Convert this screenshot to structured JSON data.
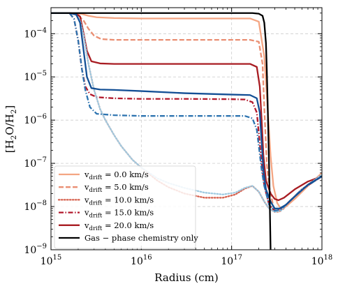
{
  "chart_data": {
    "type": "line",
    "title": "",
    "xlabel": "Radius (cm)",
    "ylabel": "[H2O/H2]",
    "xscale": "log",
    "yscale": "log",
    "xlim": [
      1000000000000000.0,
      1e+18
    ],
    "ylim": [
      1e-09,
      0.0004
    ],
    "grid": true,
    "grid_style": "dashed",
    "legend_position": "lower-left",
    "x_ticks": [
      {
        "value": 1000000000000000.0,
        "base": "10",
        "exp": "15"
      },
      {
        "value": 1e+16,
        "base": "10",
        "exp": "16"
      },
      {
        "value": 1e+17,
        "base": "10",
        "exp": "17"
      },
      {
        "value": 1e+18,
        "base": "10",
        "exp": "18"
      }
    ],
    "y_ticks": [
      {
        "value": 1e-09,
        "base": "10",
        "exp": "−9"
      },
      {
        "value": 1e-08,
        "base": "10",
        "exp": "−8"
      },
      {
        "value": 1e-07,
        "base": "10",
        "exp": "−7"
      },
      {
        "value": 1e-06,
        "base": "10",
        "exp": "−6"
      },
      {
        "value": 1e-05,
        "base": "10",
        "exp": "−5"
      },
      {
        "value": 0.0001,
        "base": "10",
        "exp": "−4"
      }
    ],
    "series": [
      {
        "name": "v_drift = 0.0 km/s",
        "legend_var": "v",
        "legend_sub": "drift",
        "legend_rest": " = 0.0 km/s",
        "color": "#f4a582",
        "dash": "solid",
        "points": [
          [
            1000000000000000.0,
            0.0003
          ],
          [
            1600000000000000.0,
            0.0003
          ],
          [
            2200000000000000.0,
            0.000285
          ],
          [
            2600000000000000.0,
            0.00026
          ],
          [
            3200000000000000.0,
            0.00024
          ],
          [
            5000000000000000.0,
            0.00023
          ],
          [
            1e+16,
            0.000225
          ],
          [
            3e+16,
            0.000225
          ],
          [
            1e+17,
            0.000225
          ],
          [
            1.6e+17,
            0.000225
          ],
          [
            2e+17,
            0.00019
          ],
          [
            2.3e+17,
            3e-05
          ],
          [
            2.5e+17,
            2e-06
          ],
          [
            2.7e+17,
            1.5e-07
          ],
          [
            2.9e+17,
            3e-08
          ],
          [
            3.2e+17,
            1.2e-08
          ],
          [
            3.5e+17,
            9e-09
          ],
          [
            4e+17,
            1e-08
          ],
          [
            5e+17,
            1.5e-08
          ],
          [
            7e+17,
            3e-08
          ],
          [
            1e+18,
            6e-08
          ]
        ]
      },
      {
        "name": "v_drift = 5.0 km/s",
        "legend_var": "v",
        "legend_sub": "drift",
        "legend_rest": " = 5.0 km/s",
        "color": "#ea8f73",
        "dash": "dashed",
        "points": [
          [
            1000000000000000.0,
            0.0003
          ],
          [
            1600000000000000.0,
            0.0003
          ],
          [
            2000000000000000.0,
            0.00027
          ],
          [
            2300000000000000.0,
            0.0002
          ],
          [
            2600000000000000.0,
            0.00013
          ],
          [
            3000000000000000.0,
            9e-05
          ],
          [
            3600000000000000.0,
            7.5e-05
          ],
          [
            5000000000000000.0,
            7.2e-05
          ],
          [
            1e+16,
            7.2e-05
          ],
          [
            3e+16,
            7.2e-05
          ],
          [
            1e+17,
            7.2e-05
          ],
          [
            1.6e+17,
            7.2e-05
          ],
          [
            2e+17,
            6.5e-05
          ],
          [
            2.2e+17,
            2e-05
          ],
          [
            2.3e+17,
            2e-06
          ],
          [
            2.45e+17,
            1e-07
          ],
          [
            2.6e+17,
            3e-08
          ],
          [
            2.9e+17,
            1e-08
          ],
          [
            3.2e+17,
            7.5e-09
          ],
          [
            3.6e+17,
            8e-09
          ],
          [
            4.5e+17,
            1.4e-08
          ],
          [
            6e+17,
            2.5e-08
          ],
          [
            1e+18,
            5.5e-08
          ]
        ]
      },
      {
        "name": "v_drift = 10.0 km/s",
        "legend_var": "v",
        "legend_sub": "drift",
        "legend_rest": " = 10.0 km/s",
        "color": "#d6604d",
        "dash": "dotted",
        "points": [
          [
            1000000000000000.0,
            0.0003
          ],
          [
            1600000000000000.0,
            0.0003
          ],
          [
            1900000000000000.0,
            0.00027
          ],
          [
            2100000000000000.0,
            0.0002
          ],
          [
            2300000000000000.0,
            9e-05
          ],
          [
            2600000000000000.0,
            2e-05
          ],
          [
            3000000000000000.0,
            5e-06
          ],
          [
            3500000000000000.0,
            1.8e-06
          ],
          [
            4000000000000000.0,
            1e-06
          ],
          [
            5000000000000000.0,
            4.5e-07
          ],
          [
            6000000000000000.0,
            2.5e-07
          ],
          [
            8000000000000000.0,
            1.2e-07
          ],
          [
            1e+16,
            8e-08
          ],
          [
            1.5e+16,
            4e-08
          ],
          [
            2e+16,
            2.8e-08
          ],
          [
            3e+16,
            2e-08
          ],
          [
            5e+16,
            1.6e-08
          ],
          [
            8e+16,
            1.6e-08
          ],
          [
            1.1e+17,
            1.9e-08
          ],
          [
            1.4e+17,
            2.6e-08
          ],
          [
            1.7e+17,
            3e-08
          ],
          [
            2e+17,
            2.2e-08
          ],
          [
            2.3e+17,
            1.3e-08
          ],
          [
            2.6e+17,
            9e-09
          ],
          [
            3e+17,
            7.5e-09
          ],
          [
            3.5e+17,
            8e-09
          ],
          [
            4.5e+17,
            1.4e-08
          ],
          [
            6e+17,
            2.5e-08
          ],
          [
            1e+18,
            5.5e-08
          ]
        ]
      },
      {
        "name": "v_drift = 15.0 km/s",
        "legend_var": "v",
        "legend_sub": "drift",
        "legend_rest": " = 15.0 km/s",
        "color": "#b2182b",
        "dash": "dashdot",
        "points": [
          [
            1000000000000000.0,
            0.0003
          ],
          [
            1600000000000000.0,
            0.0003
          ],
          [
            1800000000000000.0,
            0.00022
          ],
          [
            2000000000000000.0,
            7e-05
          ],
          [
            2200000000000000.0,
            1.5e-05
          ],
          [
            2400000000000000.0,
            6e-06
          ],
          [
            2700000000000000.0,
            4e-06
          ],
          [
            3200000000000000.0,
            3.4e-06
          ],
          [
            5000000000000000.0,
            3.2e-06
          ],
          [
            1e+16,
            3.1e-06
          ],
          [
            3e+16,
            3.1e-06
          ],
          [
            1e+17,
            3.05e-06
          ],
          [
            1.4e+17,
            3e-06
          ],
          [
            1.7e+17,
            2.6e-06
          ],
          [
            1.9e+17,
            1.5e-06
          ],
          [
            2e+17,
            5e-07
          ],
          [
            2.15e+17,
            1e-07
          ],
          [
            2.3e+17,
            3e-08
          ],
          [
            2.6e+17,
            1.1e-08
          ],
          [
            3e+17,
            8e-09
          ],
          [
            3.5e+17,
            8.5e-09
          ],
          [
            4.5e+17,
            1.4e-08
          ],
          [
            6e+17,
            2.5e-08
          ],
          [
            1e+18,
            5e-08
          ]
        ]
      },
      {
        "name": "v_drift = 20.0 km/s",
        "legend_var": "v",
        "legend_sub": "drift",
        "legend_rest": " = 20.0 km/s",
        "color": "#a81c22",
        "dash": "solid",
        "points": [
          [
            1000000000000000.0,
            0.0003
          ],
          [
            1600000000000000.0,
            0.0003
          ],
          [
            1900000000000000.0,
            0.00029
          ],
          [
            2100000000000000.0,
            0.00025
          ],
          [
            2300000000000000.0,
            0.0001
          ],
          [
            2500000000000000.0,
            4e-05
          ],
          [
            2800000000000000.0,
            2.3e-05
          ],
          [
            3500000000000000.0,
            2.05e-05
          ],
          [
            5000000000000000.0,
            2e-05
          ],
          [
            1e+16,
            2e-05
          ],
          [
            3e+16,
            2e-05
          ],
          [
            1e+17,
            2e-05
          ],
          [
            1.6e+17,
            2e-05
          ],
          [
            1.9e+17,
            1.7e-05
          ],
          [
            2.05e+17,
            6e-06
          ],
          [
            2.15e+17,
            1e-06
          ],
          [
            2.25e+17,
            1.5e-07
          ],
          [
            2.4e+17,
            4e-08
          ],
          [
            2.7e+17,
            2e-08
          ],
          [
            3e+17,
            1.5e-08
          ],
          [
            3.3e+17,
            1.4e-08
          ],
          [
            3.8e+17,
            1.6e-08
          ],
          [
            5e+17,
            2.5e-08
          ],
          [
            7e+17,
            3.8e-08
          ],
          [
            1e+18,
            5e-08
          ]
        ]
      },
      {
        "name": "v_drift = 10.0 km/s (blue)",
        "in_legend": false,
        "color": "#9ecae1",
        "dash": "dotted",
        "points": [
          [
            1000000000000000.0,
            0.0003
          ],
          [
            1600000000000000.0,
            0.0003
          ],
          [
            1900000000000000.0,
            0.00027
          ],
          [
            2100000000000000.0,
            0.0002
          ],
          [
            2300000000000000.0,
            9e-05
          ],
          [
            2600000000000000.0,
            2e-05
          ],
          [
            3000000000000000.0,
            5e-06
          ],
          [
            3500000000000000.0,
            1.8e-06
          ],
          [
            4000000000000000.0,
            1e-06
          ],
          [
            5000000000000000.0,
            4.5e-07
          ],
          [
            6000000000000000.0,
            2.5e-07
          ],
          [
            8000000000000000.0,
            1.2e-07
          ],
          [
            1e+16,
            8e-08
          ],
          [
            1.5e+16,
            4.5e-08
          ],
          [
            2e+16,
            3.5e-08
          ],
          [
            3e+16,
            2.7e-08
          ],
          [
            5e+16,
            2.1e-08
          ],
          [
            8e+16,
            1.9e-08
          ],
          [
            1.1e+17,
            2.1e-08
          ],
          [
            1.4e+17,
            2.7e-08
          ],
          [
            1.7e+17,
            3e-08
          ],
          [
            2e+17,
            2.2e-08
          ],
          [
            2.3e+17,
            1.3e-08
          ],
          [
            2.6e+17,
            9e-09
          ],
          [
            3e+17,
            7.5e-09
          ],
          [
            3.5e+17,
            8e-09
          ],
          [
            4.5e+17,
            1.4e-08
          ],
          [
            6e+17,
            2.5e-08
          ],
          [
            1e+18,
            5.5e-08
          ]
        ]
      },
      {
        "name": "v_drift = 15.0 km/s (blue)",
        "in_legend": false,
        "color": "#2e74b0",
        "dash": "dashdot",
        "points": [
          [
            1000000000000000.0,
            0.0003
          ],
          [
            1600000000000000.0,
            0.0003
          ],
          [
            1800000000000000.0,
            0.00022
          ],
          [
            2000000000000000.0,
            7e-05
          ],
          [
            2200000000000000.0,
            1.5e-05
          ],
          [
            2400000000000000.0,
            5e-06
          ],
          [
            2700000000000000.0,
            2e-06
          ],
          [
            3200000000000000.0,
            1.4e-06
          ],
          [
            5000000000000000.0,
            1.3e-06
          ],
          [
            1e+16,
            1.25e-06
          ],
          [
            3e+16,
            1.25e-06
          ],
          [
            1e+17,
            1.25e-06
          ],
          [
            1.4e+17,
            1.25e-06
          ],
          [
            1.7e+17,
            1.1e-06
          ],
          [
            1.9e+17,
            6e-07
          ],
          [
            2e+17,
            2.5e-07
          ],
          [
            2.15e+17,
            7e-08
          ],
          [
            2.3e+17,
            3e-08
          ],
          [
            2.6e+17,
            1.1e-08
          ],
          [
            3e+17,
            8e-09
          ],
          [
            3.5e+17,
            8.5e-09
          ],
          [
            4.5e+17,
            1.4e-08
          ],
          [
            6e+17,
            2.5e-08
          ],
          [
            1e+18,
            5e-08
          ]
        ]
      },
      {
        "name": "v_drift = 20.0 km/s (blue)",
        "in_legend": false,
        "color": "#134f95",
        "dash": "solid",
        "points": [
          [
            1000000000000000.0,
            0.0003
          ],
          [
            1600000000000000.0,
            0.0003
          ],
          [
            1900000000000000.0,
            0.00028
          ],
          [
            2100000000000000.0,
            0.00018
          ],
          [
            2300000000000000.0,
            4e-05
          ],
          [
            2500000000000000.0,
            1e-05
          ],
          [
            2800000000000000.0,
            5.5e-06
          ],
          [
            3500000000000000.0,
            5.1e-06
          ],
          [
            5000000000000000.0,
            5e-06
          ],
          [
            1e+16,
            4.7e-06
          ],
          [
            3e+16,
            4.2e-06
          ],
          [
            1e+17,
            3.9e-06
          ],
          [
            1.6e+17,
            3.8e-06
          ],
          [
            1.9e+17,
            3.2e-06
          ],
          [
            2.05e+17,
            1.5e-06
          ],
          [
            2.15e+17,
            3e-07
          ],
          [
            2.25e+17,
            7e-08
          ],
          [
            2.4e+17,
            2.5e-08
          ],
          [
            2.7e+17,
            1.3e-08
          ],
          [
            3e+17,
            9e-09
          ],
          [
            3.4e+17,
            9e-09
          ],
          [
            4e+17,
            1.1e-08
          ],
          [
            5e+17,
            1.7e-08
          ],
          [
            7e+17,
            3.2e-08
          ],
          [
            1e+18,
            5e-08
          ]
        ]
      },
      {
        "name": "Gas − phase chemistry only",
        "legend_var": "",
        "legend_sub": "",
        "legend_rest": "Gas − phase chemistry only",
        "color": "#000000",
        "dash": "solid",
        "points": [
          [
            1000000000000000.0,
            0.0003
          ],
          [
            1e+16,
            0.0003
          ],
          [
            1e+17,
            0.0003
          ],
          [
            1.7e+17,
            0.0003
          ],
          [
            2e+17,
            0.00029
          ],
          [
            2.2e+17,
            0.00026
          ],
          [
            2.3e+17,
            0.00018
          ],
          [
            2.4e+17,
            6e-05
          ],
          [
            2.45e+17,
            1.5e-05
          ],
          [
            2.5e+17,
            3e-06
          ],
          [
            2.55e+17,
            5e-07
          ],
          [
            2.6e+17,
            8e-08
          ],
          [
            2.65e+17,
            1e-08
          ],
          [
            2.7e+17,
            1e-09
          ]
        ]
      }
    ]
  }
}
